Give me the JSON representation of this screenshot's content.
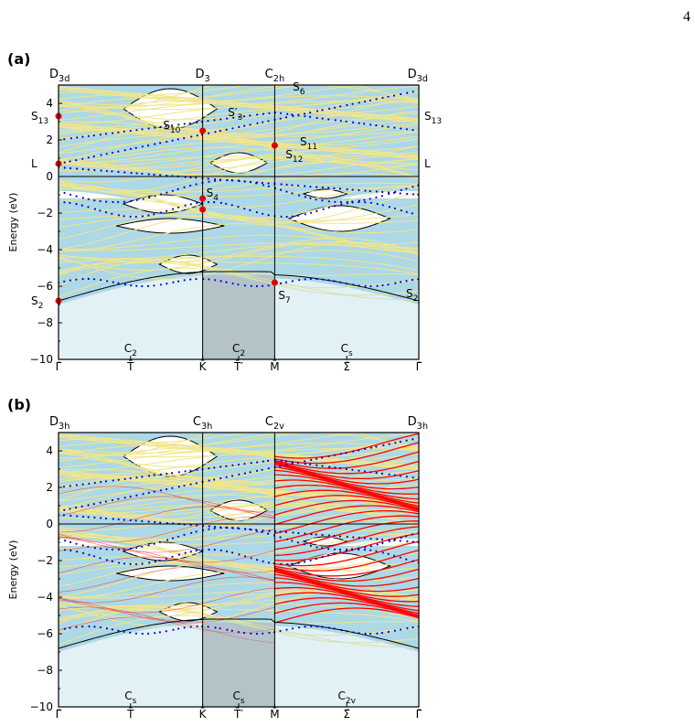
{
  "page": {
    "number": "4"
  },
  "chart_data": [
    {
      "type": "line",
      "panel_label": "(a)",
      "ylabel": "Energy (eV)",
      "ylim": [
        -10,
        5
      ],
      "yticks": [
        -10,
        -8,
        -6,
        -4,
        -2,
        0,
        2,
        4
      ],
      "k_points": [
        "Γ̄",
        "T̄",
        "K̄",
        "T̄′",
        "M̄",
        "Σ̄",
        "Γ̄"
      ],
      "k_positions": [
        0,
        1,
        2,
        2.5,
        3,
        4,
        5
      ],
      "gray_region": [
        2,
        3
      ],
      "top_symmetry_labels": [
        {
          "label": "D3d",
          "main": "D",
          "sub": "3d",
          "k": 0
        },
        {
          "label": "D3",
          "main": "D",
          "sub": "3",
          "k": 2
        },
        {
          "label": "C2h",
          "main": "C",
          "sub": "2h",
          "k": 3
        },
        {
          "label": "D3d",
          "main": "D",
          "sub": "3d",
          "k": 5
        }
      ],
      "bottom_symmetry_labels": [
        {
          "label": "C2",
          "main": "C",
          "sub": "2",
          "k": 1
        },
        {
          "label": "C2",
          "main": "C",
          "sub": "2",
          "k": 2.5
        },
        {
          "label": "Cs",
          "main": "C",
          "sub": "s",
          "k": 4
        }
      ],
      "annotations": [
        {
          "text": "S13",
          "main": "S",
          "sub": "13",
          "k": 0,
          "e": 3.3
        },
        {
          "text": "L",
          "main": "L",
          "sub": "",
          "k": 0,
          "e": 0.7
        },
        {
          "text": "S2",
          "main": "S",
          "sub": "2",
          "k": 0,
          "e": -6.8
        },
        {
          "text": "S10",
          "main": "S",
          "sub": "10",
          "k": 1.4,
          "e": 2.5
        },
        {
          "text": "S′3",
          "main": "S′",
          "sub": "3",
          "k": 2.3,
          "e": 3.2
        },
        {
          "text": "S4",
          "main": "S",
          "sub": "4",
          "k": 2,
          "e": -1.2
        },
        {
          "text": "S6",
          "main": "S",
          "sub": "6",
          "k": 3.2,
          "e": 4.6
        },
        {
          "text": "S11",
          "main": "S",
          "sub": "11",
          "k": 3.3,
          "e": 1.6
        },
        {
          "text": "S12",
          "main": "S",
          "sub": "12",
          "k": 3.1,
          "e": 0.9
        },
        {
          "text": "S7",
          "main": "S",
          "sub": "7",
          "k": 3,
          "e": -6.8
        },
        {
          "text": "S13",
          "main": "S",
          "sub": "13",
          "k": 5,
          "e": 3.3
        },
        {
          "text": "L",
          "main": "L",
          "sub": "",
          "k": 5,
          "e": 0.7
        },
        {
          "text": "S2",
          "main": "S",
          "sub": "2",
          "k": 5,
          "e": -6.4
        }
      ],
      "red_points": [
        {
          "k": 0,
          "e": 3.3
        },
        {
          "k": 0,
          "e": 0.7
        },
        {
          "k": 0,
          "e": -6.8
        },
        {
          "k": 2,
          "e": 2.5
        },
        {
          "k": 2,
          "e": -1.2
        },
        {
          "k": 2,
          "e": -1.8
        },
        {
          "k": 3,
          "e": 1.7
        },
        {
          "k": 3,
          "e": -5.8
        }
      ],
      "colors": {
        "projected_bulk": "#ADD8E6",
        "slab_bands": "#F0E68C",
        "surface_states": "#0000DD",
        "special_points": "#E00000",
        "zone_shading": "#B8B8B8"
      }
    },
    {
      "type": "line",
      "panel_label": "(b)",
      "ylabel": "Energy (eV)",
      "ylim": [
        -10,
        5
      ],
      "yticks": [
        -10,
        -8,
        -6,
        -4,
        -2,
        0,
        2,
        4
      ],
      "k_points": [
        "Γ̄",
        "T̄",
        "K̄",
        "T̄′",
        "M̄",
        "Σ̄",
        "Γ̄"
      ],
      "k_positions": [
        0,
        1,
        2,
        2.5,
        3,
        4,
        5
      ],
      "gray_region": [
        2,
        3
      ],
      "top_symmetry_labels": [
        {
          "label": "D3h",
          "main": "D",
          "sub": "3h",
          "k": 0
        },
        {
          "label": "C3h",
          "main": "C",
          "sub": "3h",
          "k": 2
        },
        {
          "label": "C2v",
          "main": "C",
          "sub": "2v",
          "k": 3
        },
        {
          "label": "D3h",
          "main": "D",
          "sub": "3h",
          "k": 5
        }
      ],
      "bottom_symmetry_labels": [
        {
          "label": "Cs",
          "main": "C",
          "sub": "s",
          "k": 1
        },
        {
          "label": "Cs",
          "main": "C",
          "sub": "s",
          "k": 2.5
        },
        {
          "label": "C2v",
          "main": "C",
          "sub": "2v",
          "k": 4
        }
      ],
      "colors": {
        "projected_bulk": "#ADD8E6",
        "slab_bands": "#F0E68C",
        "odd_bands": "#FF0000",
        "surface_states": "#0000DD",
        "zone_shading": "#B8B8B8"
      }
    }
  ]
}
